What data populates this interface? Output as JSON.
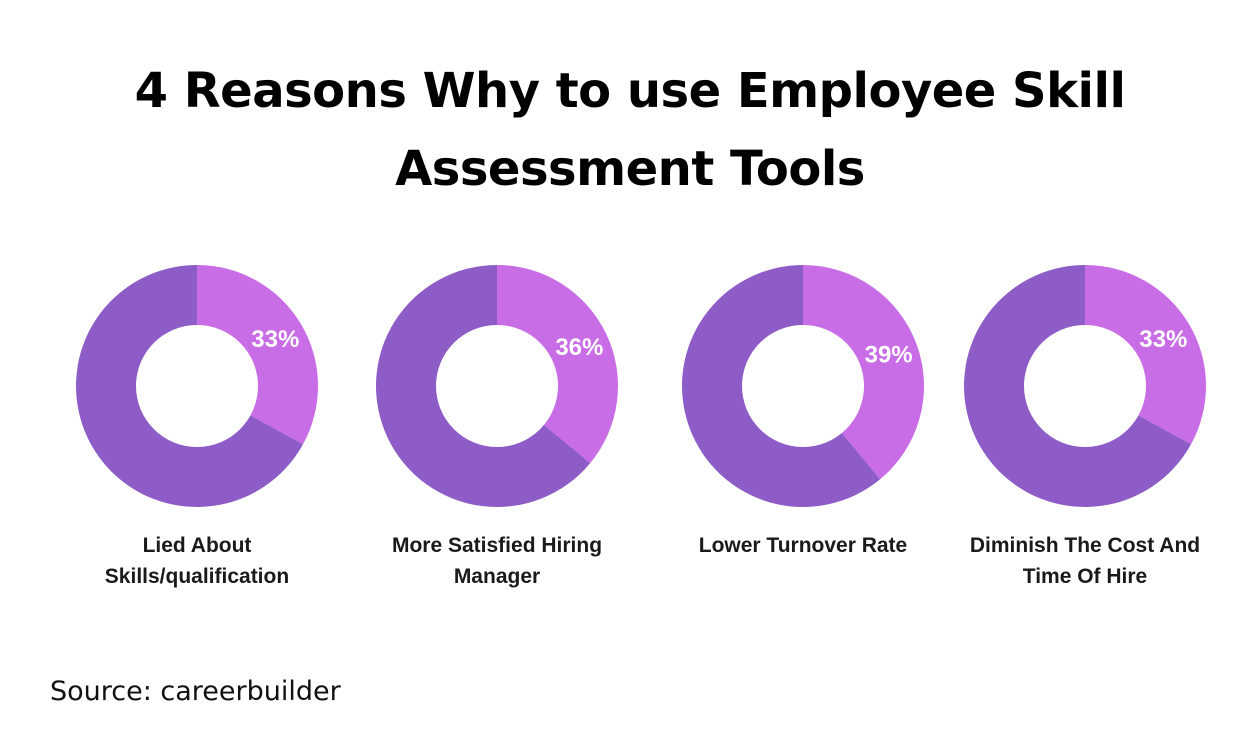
{
  "title": {
    "line1": "4 Reasons Why to use Employee Skill",
    "line2": "Assessment Tools"
  },
  "source": "Source: careerbuilder",
  "colors": {
    "highlight": "#c86de6",
    "remainder": "#8e5cc6",
    "center": "#ffffff"
  },
  "chart_data": [
    {
      "type": "pie",
      "title": "",
      "label_lines": [
        "Lied About",
        "Skills/qualification"
      ],
      "slices": [
        {
          "label": "33%",
          "value": 33
        },
        {
          "label": "",
          "value": 67
        }
      ]
    },
    {
      "type": "pie",
      "title": "",
      "label_lines": [
        "More Satisfied Hiring",
        "Manager"
      ],
      "slices": [
        {
          "label": "36%",
          "value": 36
        },
        {
          "label": "",
          "value": 64
        }
      ]
    },
    {
      "type": "pie",
      "title": "",
      "label_lines": [
        "Lower Turnover Rate"
      ],
      "slices": [
        {
          "label": "39%",
          "value": 39
        },
        {
          "label": "",
          "value": 61
        }
      ]
    },
    {
      "type": "pie",
      "title": "",
      "label_lines": [
        "Diminish The Cost And",
        "Time Of Hire"
      ],
      "slices": [
        {
          "label": "33%",
          "value": 33
        },
        {
          "label": "",
          "value": 67
        }
      ]
    }
  ]
}
